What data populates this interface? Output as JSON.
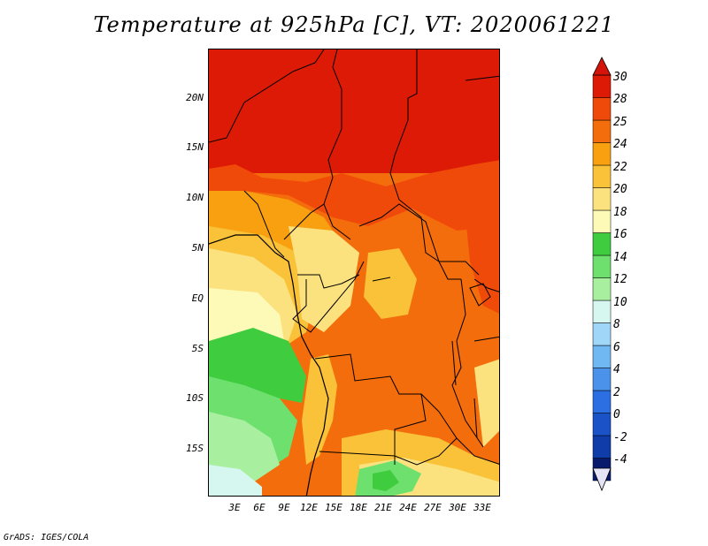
{
  "title": "Temperature at 925hPa [C], VT: 2020061221",
  "footer": "GrADS: IGES/COLA",
  "map": {
    "variable": "Temperature at 925hPa",
    "units": "C",
    "valid_time": "2020061221",
    "lat_labels": [
      "20N",
      "15N",
      "10N",
      "5N",
      "EQ",
      "5S",
      "10S",
      "15S"
    ],
    "lon_labels": [
      "3E",
      "6E",
      "9E",
      "12E",
      "15E",
      "18E",
      "21E",
      "24E",
      "27E",
      "30E",
      "33E"
    ]
  },
  "colorbar": {
    "labels": [
      "30",
      "28",
      "25",
      "24",
      "22",
      "20",
      "18",
      "16",
      "14",
      "12",
      "10",
      "8",
      "6",
      "4",
      "2",
      "0",
      "-2",
      "-4"
    ],
    "colors": [
      "#dd1a06",
      "#f04a0b",
      "#f46d0c",
      "#f8a010",
      "#f9c238",
      "#fbe27e",
      "#fdf9b6",
      "#3fcc3f",
      "#6ee06e",
      "#a8f0a0",
      "#d5f7f0",
      "#a0d6f8",
      "#6fb8f2",
      "#4b93ea",
      "#2b6fe2",
      "#1b52c8",
      "#0f3ca8",
      "#081a6c"
    ],
    "over_color": "#d4140a",
    "under_color": "#e4e4f6"
  }
}
